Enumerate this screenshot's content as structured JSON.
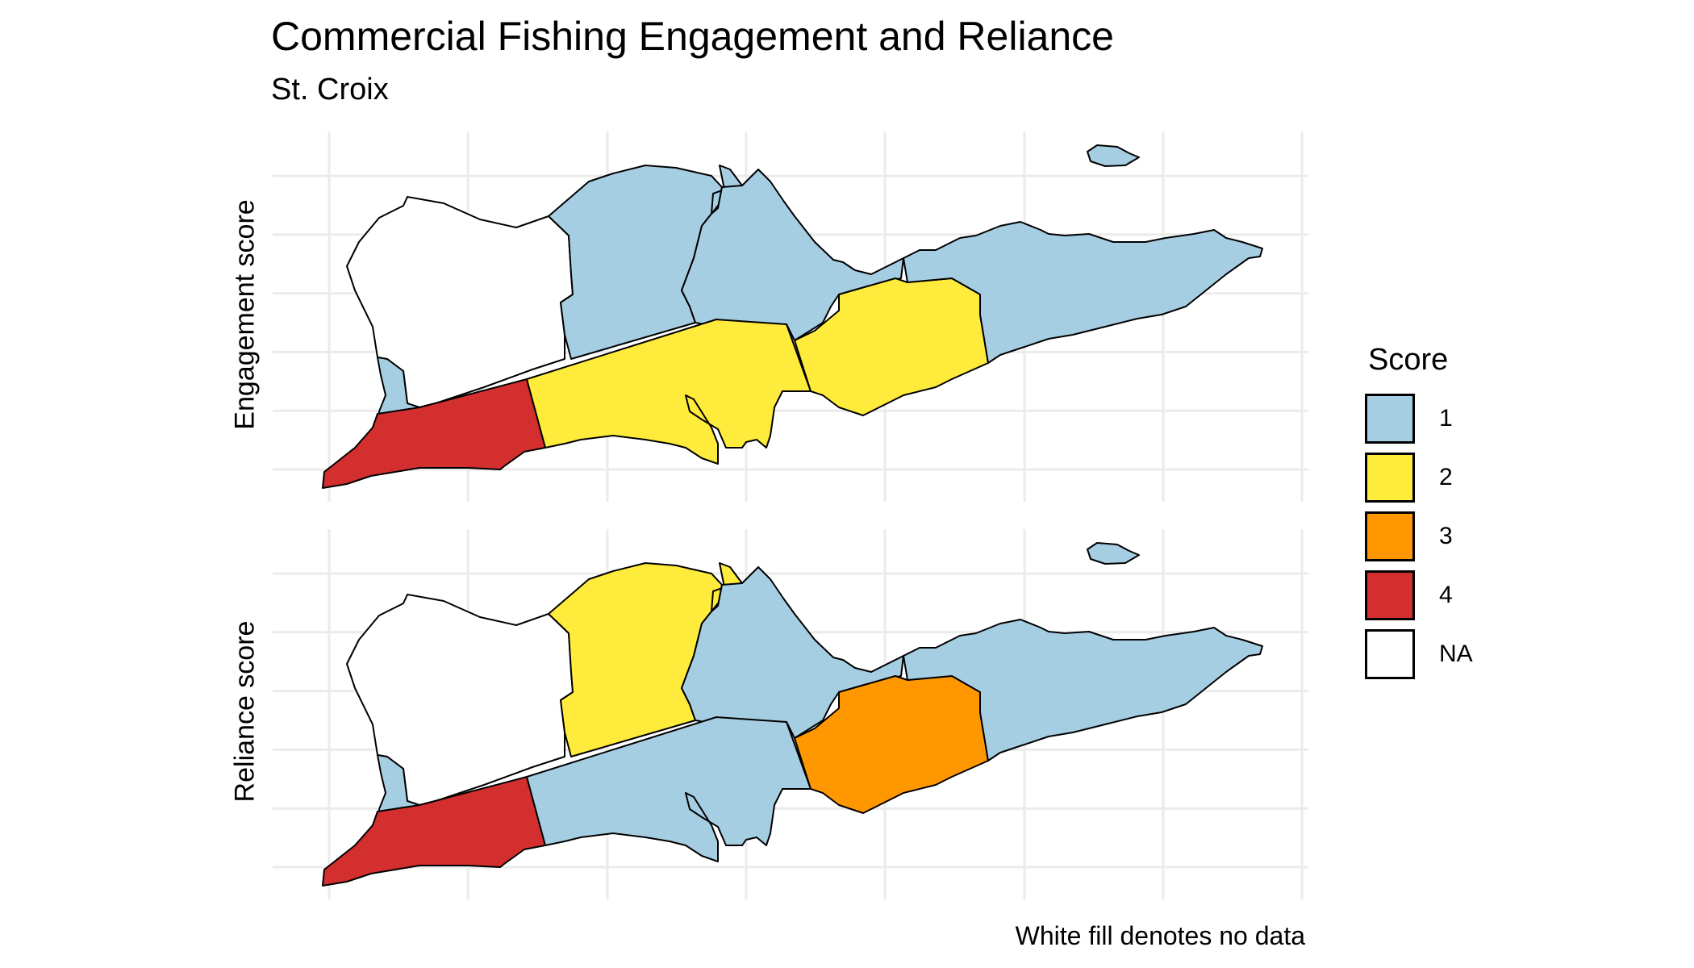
{
  "title": "Commercial Fishing Engagement and Reliance",
  "subtitle": "St. Croix",
  "caption": "White fill denotes no data",
  "legend": {
    "title": "Score",
    "items": [
      {
        "label": "1",
        "color": "#a6cee3"
      },
      {
        "label": "2",
        "color": "#ffeb3b"
      },
      {
        "label": "3",
        "color": "#ff9800"
      },
      {
        "label": "4",
        "color": "#d32f2f"
      },
      {
        "label": "NA",
        "color": "#ffffff"
      }
    ]
  },
  "panels": [
    {
      "ylabel": "Engagement score",
      "scores": {
        "northwest": "NA",
        "frederiksted_n": "1",
        "frederiksted_sw": "4",
        "north_central": "1",
        "north_east_central": "1",
        "south_central": "2",
        "christiansted_s": "2",
        "east_end": "1",
        "buck_island": "1"
      }
    },
    {
      "ylabel": "Reliance score",
      "scores": {
        "northwest": "NA",
        "frederiksted_n": "1",
        "frederiksted_sw": "4",
        "north_central": "2",
        "north_east_central": "1",
        "south_central": "1",
        "christiansted_s": "3",
        "east_end": "1",
        "buck_island": "1"
      }
    }
  ]
}
